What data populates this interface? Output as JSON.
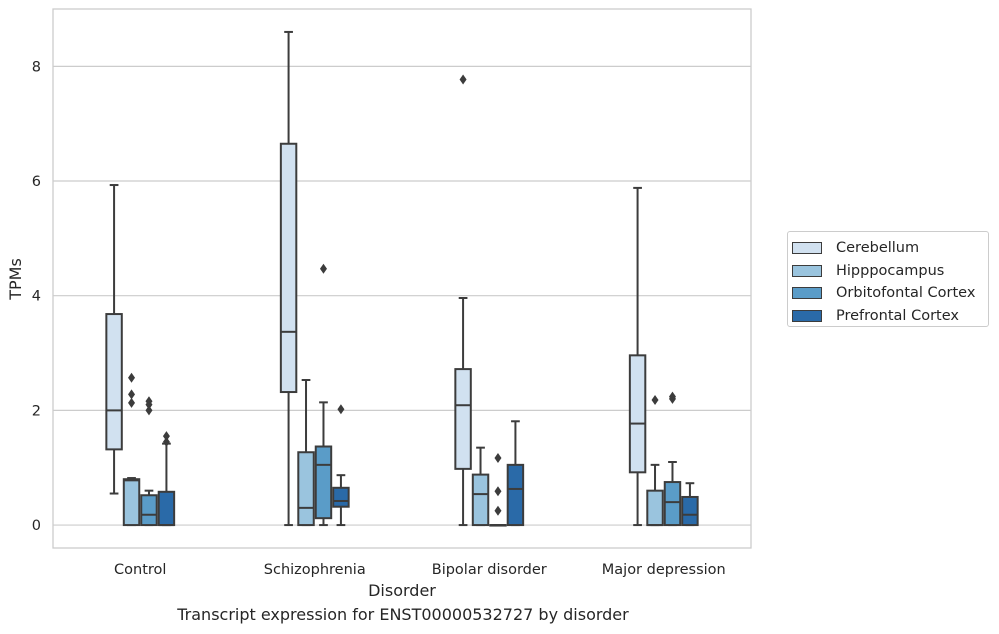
{
  "caption": "Transcript expression for ENST00000532727 by disorder",
  "chart_data": {
    "type": "box",
    "xlabel": "Disorder",
    "ylabel": "TPMs",
    "ylim": [
      -0.4,
      9.0
    ],
    "yticks": [
      0,
      2,
      4,
      6,
      8
    ],
    "grid": "horizontal",
    "legend_placement": "right",
    "categories": [
      "Control",
      "Schizophrenia",
      "Bipolar disorder",
      "Major depression"
    ],
    "series": [
      {
        "name": "Cerebellum",
        "color": "#d1e1f0",
        "boxes": [
          {
            "whisker_low": 0.55,
            "q1": 1.32,
            "median": 2.0,
            "q3": 3.68,
            "whisker_high": 5.93,
            "outliers": []
          },
          {
            "whisker_low": 0.0,
            "q1": 2.32,
            "median": 3.37,
            "q3": 6.65,
            "whisker_high": 8.6,
            "outliers": []
          },
          {
            "whisker_low": 0.0,
            "q1": 0.98,
            "median": 2.09,
            "q3": 2.72,
            "whisker_high": 3.96,
            "outliers": [
              7.77
            ]
          },
          {
            "whisker_low": 0.0,
            "q1": 0.92,
            "median": 1.77,
            "q3": 2.96,
            "whisker_high": 5.88,
            "outliers": []
          }
        ]
      },
      {
        "name": "Hipppocampus",
        "color": "#9ac4de",
        "boxes": [
          {
            "whisker_low": 0.0,
            "q1": 0.0,
            "median": 0.78,
            "q3": 0.8,
            "whisker_high": 0.82,
            "outliers": [
              2.57,
              2.28,
              2.13
            ]
          },
          {
            "whisker_low": 0.0,
            "q1": 0.0,
            "median": 0.3,
            "q3": 1.27,
            "whisker_high": 2.53,
            "outliers": []
          },
          {
            "whisker_low": 0.0,
            "q1": 0.0,
            "median": 0.54,
            "q3": 0.88,
            "whisker_high": 1.35,
            "outliers": []
          },
          {
            "whisker_low": 0.0,
            "q1": 0.0,
            "median": 0.0,
            "q3": 0.6,
            "whisker_high": 1.05,
            "outliers": [
              2.18
            ]
          }
        ]
      },
      {
        "name": "Orbitofontal Cortex",
        "color": "#5a9cc8",
        "boxes": [
          {
            "whisker_low": 0.0,
            "q1": 0.0,
            "median": 0.18,
            "q3": 0.52,
            "whisker_high": 0.6,
            "outliers": [
              2.16,
              2.1,
              2.0
            ]
          },
          {
            "whisker_low": 0.0,
            "q1": 0.12,
            "median": 1.05,
            "q3": 1.37,
            "whisker_high": 2.14,
            "outliers": [
              4.47
            ]
          },
          {
            "whisker_low": 0.0,
            "q1": 0.0,
            "median": 0.0,
            "q3": 0.0,
            "whisker_high": 0.0,
            "outliers": [
              1.17,
              0.59,
              0.25
            ]
          },
          {
            "whisker_low": 0.0,
            "q1": 0.0,
            "median": 0.4,
            "q3": 0.75,
            "whisker_high": 1.1,
            "outliers": [
              2.24,
              2.2
            ]
          }
        ]
      },
      {
        "name": "Prefrontal Cortex",
        "color": "#2a6aa8",
        "boxes": [
          {
            "whisker_low": 0.0,
            "q1": 0.0,
            "median": 0.0,
            "q3": 0.58,
            "whisker_high": 1.42,
            "outliers": [
              1.55,
              1.45
            ]
          },
          {
            "whisker_low": 0.0,
            "q1": 0.32,
            "median": 0.42,
            "q3": 0.65,
            "whisker_high": 0.87,
            "outliers": [
              2.02
            ]
          },
          {
            "whisker_low": 0.0,
            "q1": 0.0,
            "median": 0.63,
            "q3": 1.05,
            "whisker_high": 1.81,
            "outliers": []
          },
          {
            "whisker_low": 0.0,
            "q1": 0.0,
            "median": 0.18,
            "q3": 0.49,
            "whisker_high": 0.73,
            "outliers": []
          }
        ]
      }
    ]
  }
}
